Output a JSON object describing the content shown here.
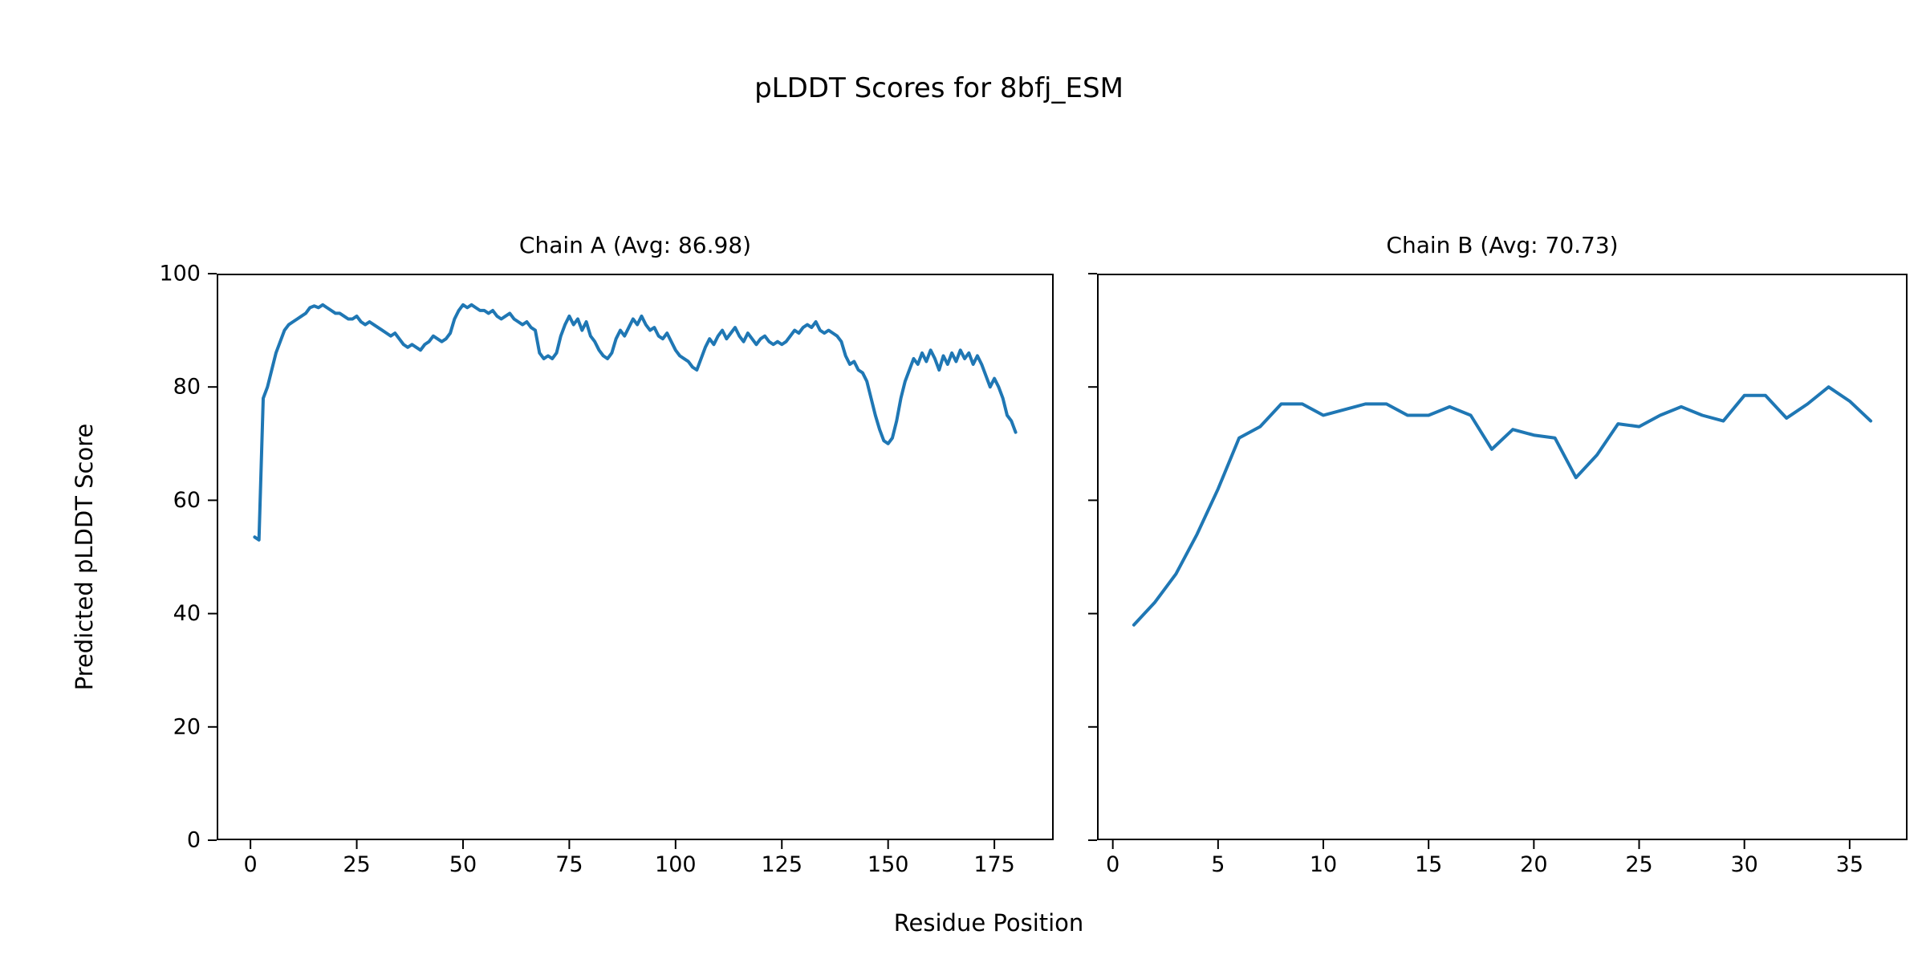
{
  "figure": {
    "title": "pLDDT Scores for 8bfj_ESM",
    "ylabel": "Predicted pLDDT Score",
    "xlabel": "Residue Position",
    "line_color": "#1f77b4",
    "spine_color": "#000000",
    "text_color": "#000000",
    "background": "#ffffff"
  },
  "chart_data": [
    {
      "type": "line",
      "title": "Chain A (Avg: 86.98)",
      "x_start": 1,
      "xlim": [
        -7.95,
        188.95
      ],
      "ylim": [
        0,
        100
      ],
      "xticks": [
        0,
        25,
        50,
        75,
        100,
        125,
        150,
        175
      ],
      "yticks": [
        0,
        20,
        40,
        60,
        80,
        100
      ],
      "show_ytick_labels": true,
      "grid": false,
      "y": [
        53.5,
        53,
        78,
        80,
        83,
        86,
        88,
        90,
        91,
        91.5,
        92,
        92.5,
        93,
        94,
        94.3,
        94,
        94.5,
        94,
        93.5,
        93,
        93,
        92.5,
        92,
        92,
        92.5,
        91.5,
        91,
        91.5,
        91,
        90.5,
        90,
        89.5,
        89,
        89.5,
        88.5,
        87.5,
        87,
        87.5,
        87,
        86.5,
        87.5,
        88,
        89,
        88.5,
        88,
        88.5,
        89.5,
        92,
        93.5,
        94.5,
        94,
        94.5,
        94,
        93.5,
        93.5,
        93,
        93.5,
        92.5,
        92,
        92.5,
        93,
        92,
        91.5,
        91,
        91.5,
        90.5,
        90,
        86,
        85,
        85.5,
        85,
        86,
        89,
        91,
        92.5,
        91,
        92,
        90,
        91.5,
        89,
        88,
        86.5,
        85.5,
        85,
        86,
        88.5,
        90,
        89,
        90.5,
        92,
        91,
        92.5,
        91,
        90,
        90.5,
        89,
        88.5,
        89.5,
        88,
        86.5,
        85.5,
        85,
        84.5,
        83.5,
        83,
        85,
        87,
        88.5,
        87.5,
        89,
        90,
        88.5,
        89.5,
        90.5,
        89,
        88,
        89.5,
        88.5,
        87.5,
        88.5,
        89,
        88,
        87.5,
        88,
        87.5,
        88,
        89,
        90,
        89.5,
        90.5,
        91,
        90.5,
        91.5,
        90,
        89.5,
        90,
        89.5,
        89,
        88,
        85.5,
        84,
        84.5,
        83,
        82.5,
        81,
        78,
        75,
        72.5,
        70.5,
        70,
        71,
        74,
        78,
        81,
        83,
        85,
        84,
        86,
        84.5,
        86.5,
        85,
        83,
        85.5,
        84,
        86,
        84.5,
        86.5,
        85,
        86,
        84,
        85.5,
        84,
        82,
        80,
        81.5,
        80,
        78,
        75,
        74,
        72
      ]
    },
    {
      "type": "line",
      "title": "Chain B (Avg: 70.73)",
      "x_start": 1,
      "xlim": [
        -0.75,
        37.75
      ],
      "ylim": [
        0,
        100
      ],
      "xticks": [
        0,
        5,
        10,
        15,
        20,
        25,
        30,
        35
      ],
      "yticks": [
        0,
        20,
        40,
        60,
        80,
        100
      ],
      "show_ytick_labels": false,
      "grid": false,
      "y": [
        38,
        42,
        47,
        54,
        62,
        71,
        73,
        77,
        77,
        75,
        76,
        77,
        77,
        75,
        75,
        76.5,
        75,
        69,
        72.5,
        71.5,
        71,
        64,
        68,
        73.5,
        73,
        75,
        76.5,
        75,
        74,
        78.5,
        78.5,
        74.5,
        77,
        80,
        77.5,
        74
      ]
    }
  ]
}
